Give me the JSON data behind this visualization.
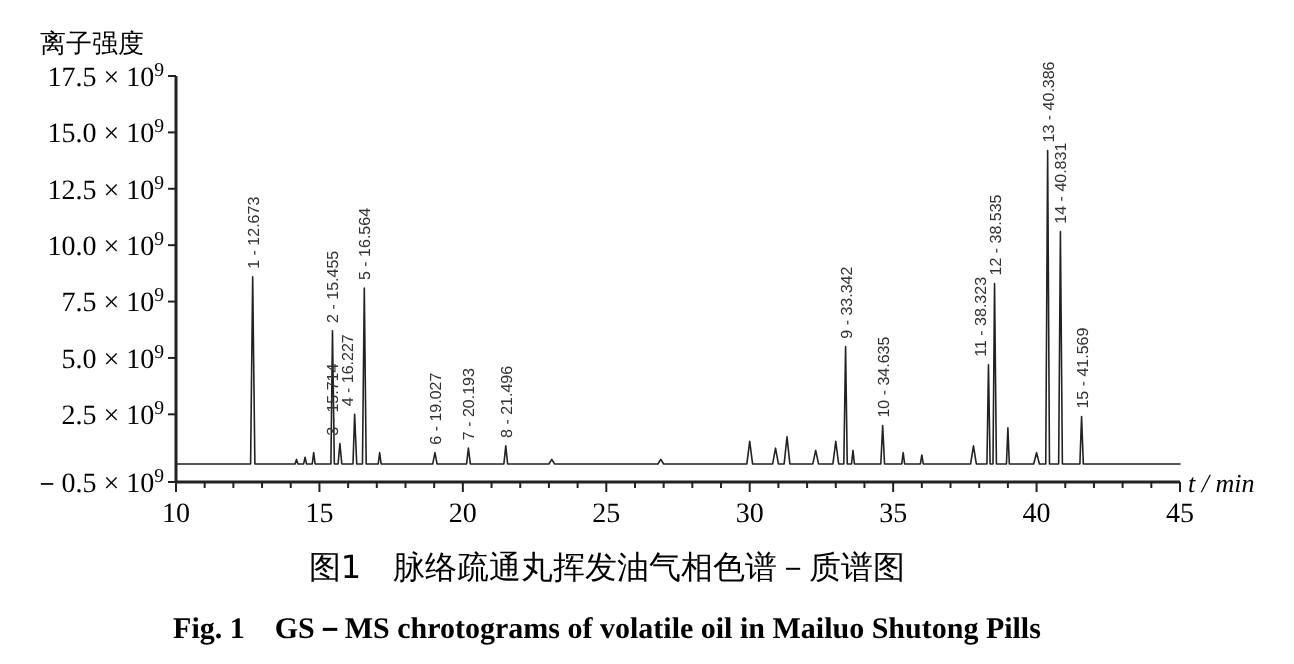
{
  "chart_data": {
    "type": "line",
    "title": "图1　脉络疏通丸挥发油气相色谱－质谱图",
    "subtitle": "Fig. 1　GS－MS chrotograms of volatile oil in Mailuo Shutong Pills",
    "xlabel": "t / min",
    "ylabel": "离子强度",
    "xlim": [
      10,
      45
    ],
    "ylim": [
      -500000000,
      17500000000
    ],
    "xticks": [
      10,
      {
        "value": 11,
        "label": null
      },
      {
        "value": 12,
        "label": null
      },
      {
        "value": 13,
        "label": null
      },
      {
        "value": 14,
        "label": null
      },
      15,
      {
        "value": 16,
        "label": null
      },
      {
        "value": 17,
        "label": null
      },
      {
        "value": 18,
        "label": null
      },
      {
        "value": 19,
        "label": null
      },
      20,
      {
        "value": 21,
        "label": null
      },
      {
        "value": 22,
        "label": null
      },
      {
        "value": 23,
        "label": null
      },
      {
        "value": 24,
        "label": null
      },
      25,
      {
        "value": 26,
        "label": null
      },
      {
        "value": 27,
        "label": null
      },
      {
        "value": 28,
        "label": null
      },
      {
        "value": 29,
        "label": null
      },
      30,
      {
        "value": 31,
        "label": null
      },
      {
        "value": 32,
        "label": null
      },
      {
        "value": 33,
        "label": null
      },
      {
        "value": 34,
        "label": null
      },
      35,
      {
        "value": 36,
        "label": null
      },
      {
        "value": 37,
        "label": null
      },
      {
        "value": 38,
        "label": null
      },
      {
        "value": 39,
        "label": null
      },
      40,
      {
        "value": 41,
        "label": null
      },
      {
        "value": 42,
        "label": null
      },
      {
        "value": 43,
        "label": null
      },
      {
        "value": 44,
        "label": null
      },
      45
    ],
    "yticks": [
      {
        "value": -500000000,
        "label": "－0.5 × 10$^{9}$"
      },
      {
        "value": 2500000000,
        "label": "2.5 × 10$^{9}$"
      },
      {
        "value": 5000000000,
        "label": "5.0 × 10$^{9}$"
      },
      {
        "value": 7500000000,
        "label": "7.5 × 10$^{9}$"
      },
      {
        "value": 10000000000,
        "label": "10.0 × 10$^{9}$"
      },
      {
        "value": 12500000000,
        "label": "12.5 × 10$^{9}$"
      },
      {
        "value": 15000000000,
        "label": "15.0 × 10$^{9}$"
      },
      {
        "value": 17500000000,
        "label": "17.5 × 10$^{9}$"
      }
    ],
    "grid": false,
    "marker": "none",
    "line_style": "solid",
    "series": [
      {
        "color": "#222222",
        "x": [
          10,
          12.6,
          12.673,
          12.75,
          14.15,
          14.2,
          14.25,
          14.45,
          14.5,
          14.55,
          14.75,
          14.8,
          14.85,
          15.4,
          15.455,
          15.52,
          15.65,
          15.714,
          15.78,
          16.17,
          16.227,
          16.3,
          16.5,
          16.564,
          16.63,
          17.05,
          17.1,
          17.15,
          18.95,
          19.027,
          19.1,
          20.13,
          20.193,
          20.26,
          21.43,
          21.496,
          21.56,
          23.0,
          23.1,
          23.2,
          26.8,
          26.9,
          27.0,
          29.9,
          30.0,
          30.1,
          30.8,
          30.9,
          31.0,
          31.2,
          31.3,
          31.4,
          32.2,
          32.3,
          32.4,
          32.9,
          33.0,
          33.1,
          33.28,
          33.342,
          33.4,
          33.55,
          33.6,
          33.65,
          34.57,
          34.635,
          34.7,
          35.3,
          35.35,
          35.4,
          35.95,
          36.0,
          36.05,
          37.7,
          37.8,
          37.9,
          38.27,
          38.323,
          38.38,
          38.48,
          38.535,
          38.6,
          38.95,
          39.0,
          39.05,
          39.9,
          40.0,
          40.1,
          40.32,
          40.386,
          40.45,
          40.77,
          40.831,
          40.9,
          41.51,
          41.569,
          41.63,
          45
        ],
        "values": [
          300000000,
          300000000,
          8600000000,
          300000000,
          300000000,
          500000000,
          300000000,
          300000000,
          600000000,
          300000000,
          300000000,
          800000000,
          300000000,
          300000000,
          6200000000,
          300000000,
          300000000,
          1200000000,
          300000000,
          300000000,
          2500000000,
          300000000,
          300000000,
          8100000000,
          300000000,
          300000000,
          800000000,
          300000000,
          300000000,
          800000000,
          300000000,
          300000000,
          1000000000,
          300000000,
          300000000,
          1100000000,
          300000000,
          300000000,
          500000000,
          300000000,
          300000000,
          500000000,
          300000000,
          300000000,
          1300000000,
          300000000,
          300000000,
          1000000000,
          300000000,
          300000000,
          1500000000,
          300000000,
          300000000,
          900000000,
          300000000,
          300000000,
          1300000000,
          300000000,
          300000000,
          5500000000,
          300000000,
          300000000,
          900000000,
          300000000,
          300000000,
          2000000000,
          300000000,
          300000000,
          800000000,
          300000000,
          300000000,
          700000000,
          300000000,
          300000000,
          1100000000,
          300000000,
          300000000,
          4700000000,
          300000000,
          300000000,
          8300000000,
          300000000,
          300000000,
          1900000000,
          300000000,
          300000000,
          800000000,
          300000000,
          300000000,
          14200000000,
          300000000,
          300000000,
          10600000000,
          300000000,
          300000000,
          2400000000,
          300000000,
          300000000
        ]
      }
    ],
    "annotations": [
      {
        "text": "1 - 12.673",
        "x": 12.673,
        "y": 8600000000
      },
      {
        "text": "2 - 15.455",
        "x": 15.455,
        "y": 6200000000
      },
      {
        "text": "3 - 15.714",
        "x": 15.714,
        "y": 1200000000
      },
      {
        "text": "4 - 16.227",
        "x": 16.227,
        "y": 2500000000
      },
      {
        "text": "5 - 16.564",
        "x": 16.564,
        "y": 8100000000
      },
      {
        "text": "6 - 19.027",
        "x": 19.027,
        "y": 800000000
      },
      {
        "text": "7 - 20.193",
        "x": 20.193,
        "y": 1000000000
      },
      {
        "text": "8 - 21.496",
        "x": 21.496,
        "y": 1100000000
      },
      {
        "text": "9 - 33.342",
        "x": 33.342,
        "y": 5500000000
      },
      {
        "text": "10 - 34.635",
        "x": 34.635,
        "y": 2000000000
      },
      {
        "text": "11 - 38.323",
        "x": 38.323,
        "y": 4700000000
      },
      {
        "text": "12 - 38.535",
        "x": 38.535,
        "y": 8300000000
      },
      {
        "text": "13 - 40.386",
        "x": 40.386,
        "y": 14200000000
      },
      {
        "text": "14 - 40.831",
        "x": 40.831,
        "y": 10600000000
      },
      {
        "text": "15 - 41.569",
        "x": 41.569,
        "y": 2400000000
      }
    ]
  }
}
